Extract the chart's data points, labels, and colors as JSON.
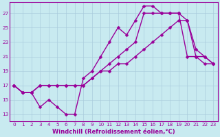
{
  "background_color": "#c8eaf0",
  "grid_color": "#aaccdd",
  "line_color": "#990099",
  "marker": "D",
  "markersize": 2.5,
  "linewidth": 1.0,
  "xlim": [
    -0.5,
    23.5
  ],
  "ylim": [
    12,
    28.5
  ],
  "xticks": [
    0,
    1,
    2,
    3,
    4,
    5,
    6,
    7,
    8,
    9,
    10,
    11,
    12,
    13,
    14,
    15,
    16,
    17,
    18,
    19,
    20,
    21,
    22,
    23
  ],
  "yticks": [
    13,
    15,
    17,
    19,
    21,
    23,
    25,
    27
  ],
  "xlabel": "Windchill (Refroidissement éolien,°C)",
  "xlabel_fontsize": 6.0,
  "tick_fontsize": 5.2,
  "line1_zigzag": {
    "x": [
      0,
      1,
      2,
      3,
      4,
      5,
      6,
      7,
      8,
      9,
      10,
      11,
      12,
      13,
      14,
      15,
      16,
      17,
      18,
      19,
      20,
      21,
      22,
      23
    ],
    "y": [
      17,
      16,
      16,
      14,
      15,
      14,
      13,
      13,
      18,
      19,
      21,
      23,
      25,
      24,
      26,
      28,
      28,
      27,
      27,
      27,
      21,
      21,
      21,
      20
    ]
  },
  "line2_upper": {
    "x": [
      0,
      1,
      2,
      3,
      4,
      5,
      6,
      7,
      8,
      9,
      10,
      11,
      12,
      13,
      14,
      15,
      16,
      17,
      18,
      19,
      20,
      21,
      22,
      23
    ],
    "y": [
      17,
      16,
      16,
      17,
      17,
      17,
      17,
      17,
      17,
      18,
      19,
      20,
      21,
      22,
      23,
      27,
      27,
      27,
      27,
      27,
      26,
      22,
      21,
      20
    ]
  },
  "line3_diagonal": {
    "x": [
      0,
      1,
      2,
      3,
      4,
      5,
      6,
      7,
      8,
      9,
      10,
      11,
      12,
      13,
      14,
      15,
      16,
      17,
      18,
      19,
      20,
      21,
      22,
      23
    ],
    "y": [
      17,
      16,
      16,
      17,
      17,
      17,
      17,
      17,
      17,
      18,
      19,
      19,
      20,
      20,
      21,
      22,
      23,
      24,
      25,
      26,
      26,
      21,
      20,
      20
    ]
  }
}
